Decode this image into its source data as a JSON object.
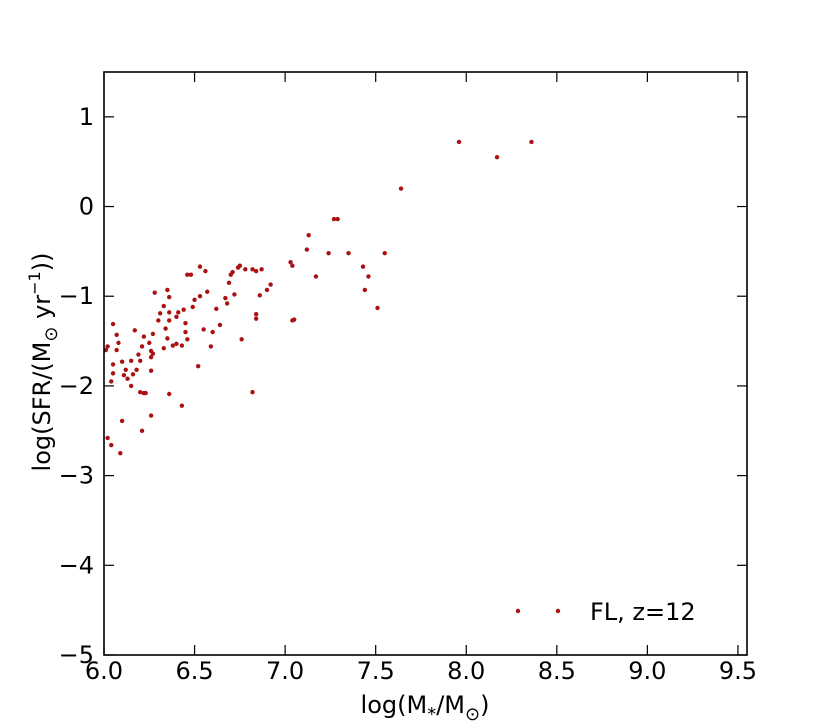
{
  "chart_data": {
    "type": "scatter",
    "xlabel": "log(M*/M⊙)",
    "ylabel": "log(SFR/(M⊙ yr⁻¹))",
    "xlim": [
      6.0,
      9.55
    ],
    "ylim": [
      -5,
      1.5
    ],
    "xticks": [
      6.0,
      6.5,
      7.0,
      7.5,
      8.0,
      8.5,
      9.0,
      9.5
    ],
    "xtick_labels": [
      "6.0",
      "6.5",
      "7.0",
      "7.5",
      "8.0",
      "8.5",
      "9.0",
      "9.5"
    ],
    "yticks": [
      1,
      0,
      -1,
      -2,
      -3,
      -4,
      -5
    ],
    "ytick_labels": [
      "1",
      "0",
      "−1",
      "−2",
      "−3",
      "−4",
      "−5"
    ],
    "grid": false,
    "legend_position": "lower-right",
    "series": [
      {
        "name": "FL, z=12",
        "color": "#aa1111",
        "points": [
          [
            7.96,
            0.72
          ],
          [
            8.17,
            0.55
          ],
          [
            8.36,
            0.72
          ],
          [
            7.64,
            0.2
          ],
          [
            7.27,
            -0.14
          ],
          [
            7.29,
            -0.14
          ],
          [
            7.13,
            -0.32
          ],
          [
            7.12,
            -0.48
          ],
          [
            7.24,
            -0.52
          ],
          [
            7.35,
            -0.52
          ],
          [
            7.55,
            -0.52
          ],
          [
            7.17,
            -0.78
          ],
          [
            7.03,
            -0.62
          ],
          [
            7.04,
            -0.66
          ],
          [
            7.43,
            -0.67
          ],
          [
            7.46,
            -0.78
          ],
          [
            7.44,
            -0.93
          ],
          [
            7.51,
            -1.13
          ],
          [
            7.05,
            -1.26
          ],
          [
            7.04,
            -1.27
          ],
          [
            6.87,
            -0.7
          ],
          [
            6.84,
            -0.72
          ],
          [
            6.82,
            -0.7
          ],
          [
            6.78,
            -0.7
          ],
          [
            6.75,
            -0.66
          ],
          [
            6.74,
            -0.68
          ],
          [
            6.71,
            -0.73
          ],
          [
            6.7,
            -0.76
          ],
          [
            6.69,
            -0.85
          ],
          [
            6.92,
            -0.87
          ],
          [
            6.9,
            -0.93
          ],
          [
            6.86,
            -0.99
          ],
          [
            6.72,
            -0.98
          ],
          [
            6.67,
            -1.02
          ],
          [
            6.68,
            -1.08
          ],
          [
            6.62,
            -1.14
          ],
          [
            6.84,
            -1.2
          ],
          [
            6.84,
            -1.25
          ],
          [
            6.76,
            -1.48
          ],
          [
            6.64,
            -1.32
          ],
          [
            6.6,
            -1.4
          ],
          [
            6.59,
            -1.56
          ],
          [
            6.55,
            -1.37
          ],
          [
            6.52,
            -1.78
          ],
          [
            6.53,
            -0.67
          ],
          [
            6.56,
            -0.72
          ],
          [
            6.57,
            -0.95
          ],
          [
            6.53,
            -1.0
          ],
          [
            6.5,
            -1.04
          ],
          [
            6.48,
            -0.76
          ],
          [
            6.46,
            -0.76
          ],
          [
            6.49,
            -1.12
          ],
          [
            6.44,
            -1.15
          ],
          [
            6.41,
            -1.18
          ],
          [
            6.4,
            -1.23
          ],
          [
            6.45,
            -1.3
          ],
          [
            6.46,
            -1.48
          ],
          [
            6.43,
            -1.55
          ],
          [
            6.4,
            -1.53
          ],
          [
            6.38,
            -1.55
          ],
          [
            6.36,
            -1.18
          ],
          [
            6.36,
            -1.27
          ],
          [
            6.34,
            -1.36
          ],
          [
            6.35,
            -1.47
          ],
          [
            6.33,
            -1.58
          ],
          [
            6.35,
            -0.93
          ],
          [
            6.36,
            -1.01
          ],
          [
            6.33,
            -1.11
          ],
          [
            6.31,
            -1.19
          ],
          [
            6.3,
            -1.27
          ],
          [
            6.28,
            -0.96
          ],
          [
            6.27,
            -1.42
          ],
          [
            6.26,
            -1.61
          ],
          [
            6.27,
            -1.64
          ],
          [
            6.26,
            -1.68
          ],
          [
            6.25,
            -1.52
          ],
          [
            6.22,
            -1.45
          ],
          [
            6.21,
            -1.56
          ],
          [
            6.19,
            -1.65
          ],
          [
            6.2,
            -1.72
          ],
          [
            6.17,
            -1.38
          ],
          [
            6.18,
            -1.82
          ],
          [
            6.16,
            -1.87
          ],
          [
            6.15,
            -1.72
          ],
          [
            6.13,
            -1.92
          ],
          [
            6.15,
            -2.0
          ],
          [
            6.1,
            -1.73
          ],
          [
            6.12,
            -1.82
          ],
          [
            6.11,
            -1.88
          ],
          [
            6.08,
            -1.52
          ],
          [
            6.07,
            -1.6
          ],
          [
            6.05,
            -1.76
          ],
          [
            6.05,
            -1.86
          ],
          [
            6.04,
            -1.95
          ],
          [
            6.07,
            -1.43
          ],
          [
            6.05,
            -1.31
          ],
          [
            6.02,
            -1.56
          ],
          [
            6.01,
            -1.6
          ],
          [
            6.2,
            -2.07
          ],
          [
            6.22,
            -2.08
          ],
          [
            6.23,
            -2.08
          ],
          [
            6.36,
            -2.09
          ],
          [
            6.43,
            -2.22
          ],
          [
            6.26,
            -2.33
          ],
          [
            6.21,
            -2.5
          ],
          [
            6.1,
            -2.39
          ],
          [
            6.02,
            -2.58
          ],
          [
            6.04,
            -2.66
          ],
          [
            6.09,
            -2.75
          ],
          [
            6.82,
            -2.07
          ],
          [
            6.26,
            -1.83
          ],
          [
            6.45,
            -1.4
          ]
        ]
      }
    ]
  }
}
